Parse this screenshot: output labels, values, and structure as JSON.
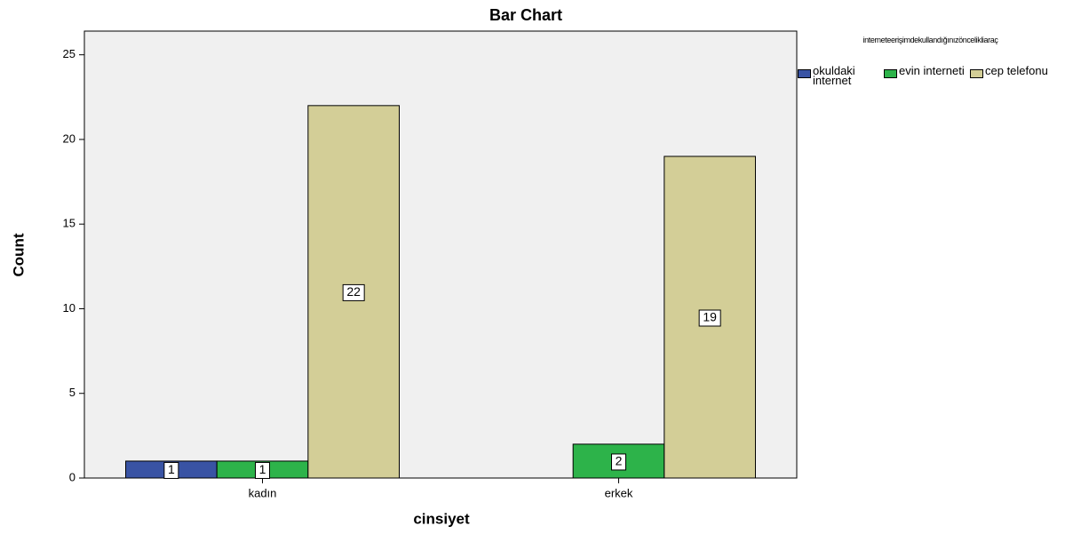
{
  "chart_data": {
    "type": "bar",
    "title": "Bar Chart",
    "x_label": "cinsiyet",
    "y_label": "Count",
    "legend_title": "interneteerişimdekullandığınızöncelikliaraç",
    "categories": [
      "kadın",
      "erkek"
    ],
    "series": [
      {
        "name": "okuldaki internet",
        "color": "#3953a4",
        "values": [
          1,
          null
        ]
      },
      {
        "name": "evin interneti",
        "color": "#2db34a",
        "values": [
          1,
          2
        ]
      },
      {
        "name": "cep telefonu",
        "color": "#d3ce97",
        "values": [
          22,
          19
        ]
      }
    ],
    "ylim": [
      0,
      26.4
    ],
    "yticks": [
      0,
      5,
      10,
      15,
      20,
      25
    ]
  }
}
